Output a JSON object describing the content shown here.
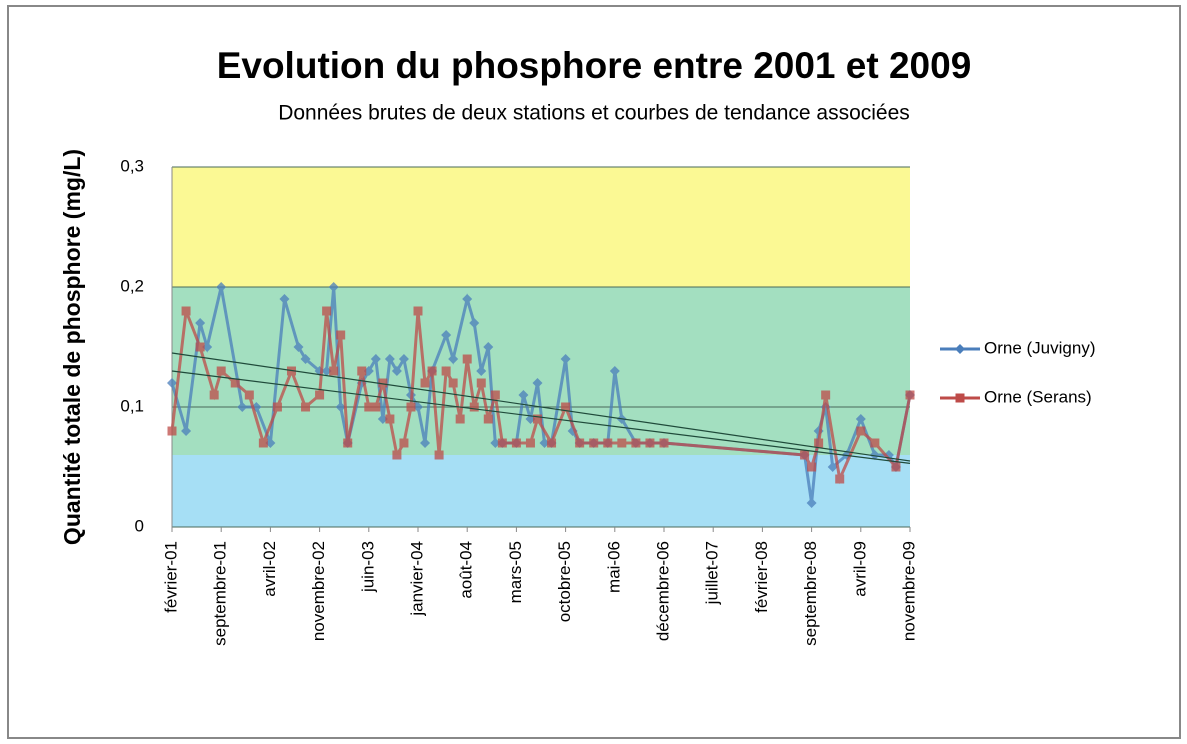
{
  "chart_data": {
    "type": "line",
    "title": "Evolution du phosphore entre 2001 et 2009",
    "subtitle": "Données brutes de deux stations et courbes de tendance associées",
    "y_label": "Quantité totale de phosphore (mg/L)",
    "ylim": [
      0,
      0.3
    ],
    "yticks": [
      0,
      {
        "value": 0.1,
        "label": "0,1"
      },
      {
        "value": 0.2,
        "label": "0,2"
      },
      {
        "value": 0.3,
        "label": "0,3"
      }
    ],
    "xlim": [
      "2001-02",
      "2009-11"
    ],
    "xticks": [
      {
        "value": "2001-02",
        "label": "février-01"
      },
      {
        "value": "2001-09",
        "label": "septembre-01"
      },
      {
        "value": "2002-04",
        "label": "avril-02"
      },
      {
        "value": "2002-11",
        "label": "novembre-02"
      },
      {
        "value": "2003-06",
        "label": "juin-03"
      },
      {
        "value": "2004-01",
        "label": "janvier-04"
      },
      {
        "value": "2004-08",
        "label": "août-04"
      },
      {
        "value": "2005-03",
        "label": "mars-05"
      },
      {
        "value": "2005-10",
        "label": "octobre-05"
      },
      {
        "value": "2006-05",
        "label": "mai-06"
      },
      {
        "value": "2006-12",
        "label": "décembre-06"
      },
      {
        "value": "2007-07",
        "label": "juillet-07"
      },
      {
        "value": "2008-02",
        "label": "février-08"
      },
      {
        "value": "2008-09",
        "label": "septembre-08"
      },
      {
        "value": "2009-04",
        "label": "avril-09"
      },
      {
        "value": "2009-11",
        "label": "novembre-09"
      }
    ],
    "bands": [
      {
        "from": 0,
        "to": 0.06,
        "color": "#a6dff5"
      },
      {
        "from": 0.06,
        "to": 0.2,
        "color": "#a3dfc0"
      },
      {
        "from": 0.2,
        "to": 0.3,
        "color": "#fbf994"
      }
    ],
    "grid": true,
    "legend": "right",
    "series": [
      {
        "name": "Orne (Juvigny)",
        "color": "#4a7ebb",
        "marker": "diamond",
        "x": [
          "2001-02",
          "2001-04",
          "2001-06",
          "2001-07",
          "2001-09",
          "2001-12",
          "2002-02",
          "2002-04",
          "2002-06",
          "2002-08",
          "2002-09",
          "2002-11",
          "2002-12",
          "2003-01",
          "2003-02",
          "2003-03",
          "2003-05",
          "2003-06",
          "2003-07",
          "2003-08",
          "2003-09",
          "2003-10",
          "2003-11",
          "2003-12",
          "2004-01",
          "2004-02",
          "2004-03",
          "2004-05",
          "2004-06",
          "2004-08",
          "2004-09",
          "2004-10",
          "2004-11",
          "2004-12",
          "2005-01",
          "2005-03",
          "2005-04",
          "2005-05",
          "2005-06",
          "2005-07",
          "2005-08",
          "2005-10",
          "2005-11",
          "2005-12",
          "2006-02",
          "2006-04",
          "2006-05",
          "2006-06",
          "2006-08",
          "2006-10",
          "2006-12",
          "2008-08",
          "2008-09",
          "2008-10",
          "2008-11",
          "2008-12",
          "2009-02",
          "2009-04",
          "2009-06",
          "2009-08",
          "2009-09",
          "2009-11"
        ],
        "values": [
          0.12,
          0.08,
          0.17,
          0.15,
          0.2,
          0.1,
          0.1,
          0.07,
          0.19,
          0.15,
          0.14,
          0.13,
          0.13,
          0.2,
          0.1,
          0.07,
          0.12,
          0.13,
          0.14,
          0.09,
          0.14,
          0.13,
          0.14,
          0.11,
          0.1,
          0.07,
          0.13,
          0.16,
          0.14,
          0.19,
          0.17,
          0.13,
          0.15,
          0.07,
          0.07,
          0.07,
          0.11,
          0.09,
          0.12,
          0.07,
          0.07,
          0.14,
          0.08,
          0.07,
          0.07,
          0.07,
          0.13,
          0.09,
          0.07,
          0.07,
          0.07,
          0.06,
          0.02,
          0.08,
          0.1,
          0.05,
          0.06,
          0.09,
          0.06,
          0.06,
          0.05,
          0.11
        ],
        "trend": [
          0.145,
          0.055
        ]
      },
      {
        "name": "Orne (Serans)",
        "color": "#be4b48",
        "marker": "square",
        "x": [
          "2001-02",
          "2001-04",
          "2001-06",
          "2001-08",
          "2001-09",
          "2001-11",
          "2002-01",
          "2002-03",
          "2002-05",
          "2002-07",
          "2002-09",
          "2002-11",
          "2002-12",
          "2003-01",
          "2003-02",
          "2003-03",
          "2003-05",
          "2003-06",
          "2003-07",
          "2003-08",
          "2003-09",
          "2003-10",
          "2003-11",
          "2003-12",
          "2004-01",
          "2004-02",
          "2004-03",
          "2004-04",
          "2004-05",
          "2004-06",
          "2004-07",
          "2004-08",
          "2004-09",
          "2004-10",
          "2004-11",
          "2004-12",
          "2005-01",
          "2005-03",
          "2005-05",
          "2005-06",
          "2005-08",
          "2005-10",
          "2005-12",
          "2006-02",
          "2006-04",
          "2006-06",
          "2006-08",
          "2006-10",
          "2006-12",
          "2008-08",
          "2008-09",
          "2008-10",
          "2008-11",
          "2009-01",
          "2009-04",
          "2009-06",
          "2009-09",
          "2009-11"
        ],
        "values": [
          0.08,
          0.18,
          0.15,
          0.11,
          0.13,
          0.12,
          0.11,
          0.07,
          0.1,
          0.13,
          0.1,
          0.11,
          0.18,
          0.13,
          0.16,
          0.07,
          0.13,
          0.1,
          0.1,
          0.12,
          0.09,
          0.06,
          0.07,
          0.1,
          0.18,
          0.12,
          0.13,
          0.06,
          0.13,
          0.12,
          0.09,
          0.14,
          0.1,
          0.12,
          0.09,
          0.11,
          0.07,
          0.07,
          0.07,
          0.09,
          0.07,
          0.1,
          0.07,
          0.07,
          0.07,
          0.07,
          0.07,
          0.07,
          0.07,
          0.06,
          0.05,
          0.07,
          0.11,
          0.04,
          0.08,
          0.07,
          0.05,
          0.11
        ],
        "trend": [
          0.13,
          0.053
        ]
      }
    ]
  }
}
